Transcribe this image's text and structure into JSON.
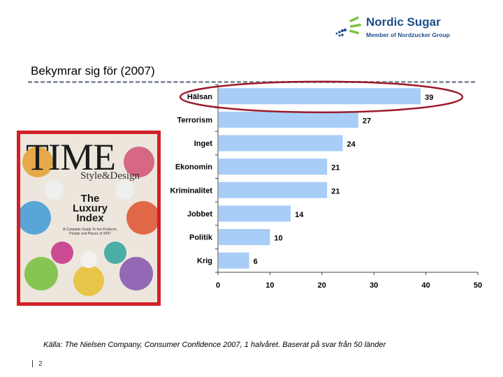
{
  "header": {
    "logo_name": "Nordic Sugar",
    "logo_sub": "Member of Nordzucker Group",
    "title": "Bekymrar sig för (2007)"
  },
  "cover": {
    "masthead": "TIME",
    "style_line": "Style&Design",
    "headline": "The Luxury Index",
    "subline": "A Complete Guide To the Products, People and Places of 2007",
    "frame_color": "#d51e25"
  },
  "chart_data": {
    "type": "bar",
    "orientation": "horizontal",
    "categories": [
      "Hälsan",
      "Terrorism",
      "Inget",
      "Ekonomin",
      "Kriminalitet",
      "Jobbet",
      "Politik",
      "Krig"
    ],
    "values": [
      39,
      27,
      24,
      21,
      21,
      14,
      10,
      6
    ],
    "xlim": [
      0,
      50
    ],
    "xticks": [
      0,
      10,
      20,
      30,
      40,
      50
    ],
    "bar_color": "#a8cdf7",
    "highlight_color": "#9b1b2a",
    "highlight_category": "Hälsan",
    "grid": false
  },
  "footer": {
    "source": "Källa: The Nielsen Company,  Consumer Confidence 2007, 1 halvåret. Baserat på svar från 50 länder",
    "page_number": "2"
  }
}
